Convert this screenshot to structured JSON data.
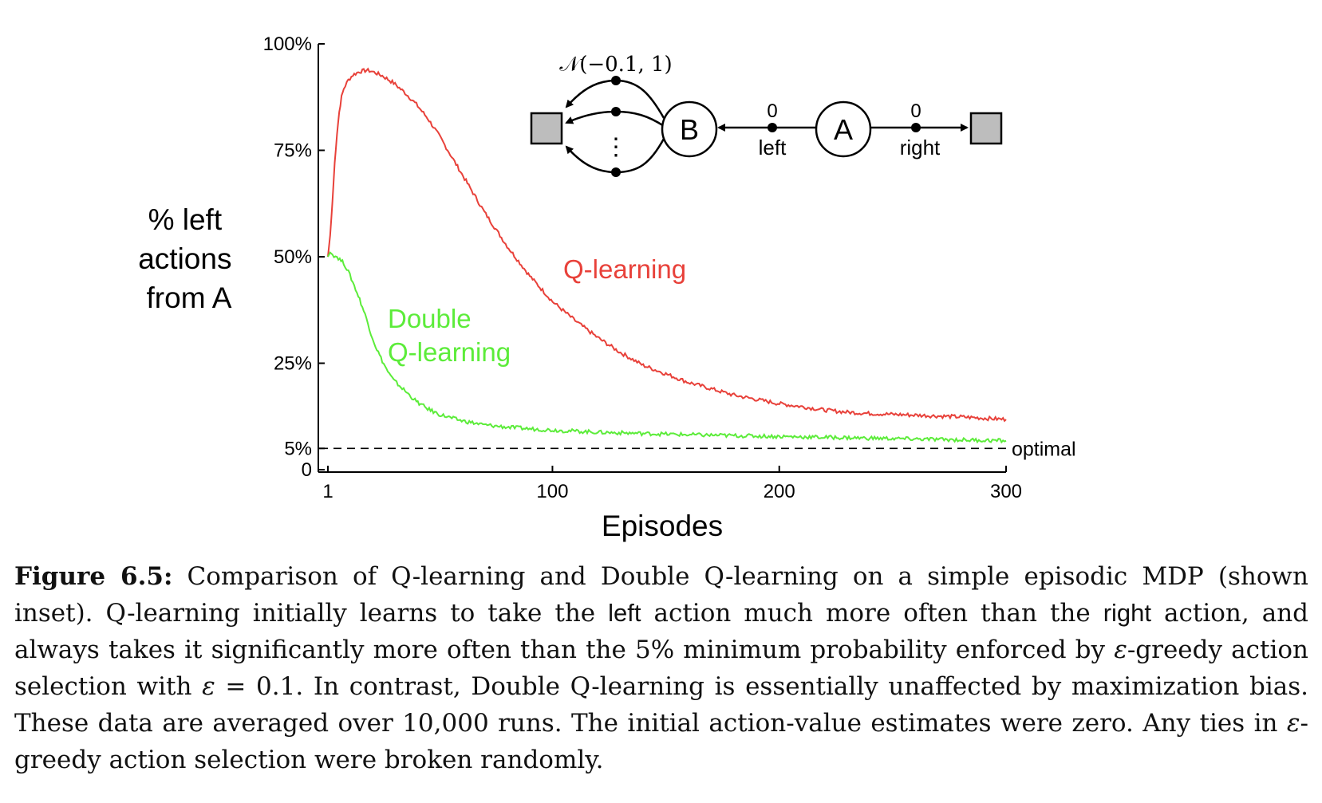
{
  "chart_data": {
    "type": "line",
    "ylabel": [
      "% left",
      "actions",
      "from A"
    ],
    "xlabel": "Episodes",
    "xlim": [
      1,
      300
    ],
    "ylim": [
      0,
      100
    ],
    "xticks": [
      {
        "value": 1,
        "label": "1"
      },
      {
        "value": 100,
        "label": "100"
      },
      {
        "value": 200,
        "label": "200"
      },
      {
        "value": 300,
        "label": "300"
      }
    ],
    "yticks": [
      {
        "value": 0,
        "label": "0"
      },
      {
        "value": 5,
        "label": "5%"
      },
      {
        "value": 25,
        "label": "25%"
      },
      {
        "value": 50,
        "label": "50%"
      },
      {
        "value": 75,
        "label": "75%"
      },
      {
        "value": 100,
        "label": "100%"
      }
    ],
    "reference_line": {
      "y": 5,
      "label": "optimal",
      "style": "dashed"
    },
    "series": [
      {
        "name": "Q-learning",
        "color": "#e8413a",
        "x": [
          1,
          2,
          3,
          4,
          5,
          6,
          7,
          8,
          10,
          12,
          15,
          18,
          20,
          22,
          25,
          30,
          35,
          40,
          45,
          50,
          55,
          60,
          65,
          70,
          75,
          80,
          85,
          90,
          95,
          100,
          110,
          120,
          130,
          140,
          150,
          160,
          170,
          180,
          190,
          200,
          210,
          220,
          230,
          240,
          250,
          260,
          270,
          280,
          290,
          300
        ],
        "y": [
          50,
          55,
          63,
          72,
          79,
          84,
          87.5,
          89.5,
          91.5,
          92.7,
          93.5,
          93.8,
          93.6,
          93.2,
          92.5,
          90.8,
          88.5,
          85.8,
          82.5,
          78.5,
          74,
          69.5,
          65,
          60.5,
          56.5,
          52.5,
          49,
          45.5,
          42.5,
          39.5,
          35,
          31,
          27.5,
          24.5,
          22.5,
          20.5,
          19,
          17.5,
          16.5,
          15.5,
          14.8,
          14,
          13.5,
          13.2,
          13,
          12.8,
          12.6,
          12.4,
          12.1,
          11.8
        ]
      },
      {
        "name": "Double Q-learning",
        "color": "#5cec3a",
        "x": [
          1,
          2,
          3,
          5,
          8,
          10,
          12,
          15,
          18,
          20,
          22,
          25,
          28,
          30,
          35,
          40,
          45,
          50,
          55,
          60,
          70,
          80,
          90,
          100,
          120,
          140,
          160,
          180,
          200,
          220,
          240,
          260,
          280,
          300
        ],
        "y": [
          50,
          51,
          50.5,
          50,
          48.5,
          46.5,
          44,
          40,
          35.5,
          32,
          29,
          25.5,
          22.5,
          21,
          18.5,
          16,
          14.3,
          13,
          12.2,
          11.5,
          10.5,
          10,
          9.6,
          9.3,
          8.8,
          8.5,
          8.2,
          8,
          7.8,
          7.6,
          7.4,
          7.2,
          7,
          6.8
        ]
      }
    ],
    "series_labels": [
      {
        "text": [
          "Q-learning"
        ]
      },
      {
        "text": [
          "Double",
          "Q-learning"
        ]
      }
    ]
  },
  "inset": {
    "noise_label": "𝒩(−0.1, 1)",
    "state_b": "B",
    "state_a": "A",
    "left_reward": "0",
    "left_label": "left",
    "right_reward": "0",
    "right_label": "right",
    "dots": "⋮",
    "terminal_color": "#bdbdbd"
  },
  "caption": {
    "label": "Figure 6.5:",
    "t1": " Comparison of Q-learning and Double Q-learning on a simple episodic MDP (shown inset). Q-learning initially learns to take the ",
    "left_word": "left",
    "t2": " action much more often than the ",
    "right_word": "right",
    "t3": " action, and always takes it significantly more often than the 5% minimum probability enforced by ",
    "eps1": "ε",
    "t4": "-greedy action selection with ",
    "eps2": "ε",
    "t5": " = 0.1. In contrast, Double Q-learning is essentially unaffected by maximization bias. These data are averaged over 10,000 runs. The initial action-value estimates were zero. Any ties in ",
    "eps3": "ε",
    "t6": "-greedy action selection were broken randomly."
  }
}
